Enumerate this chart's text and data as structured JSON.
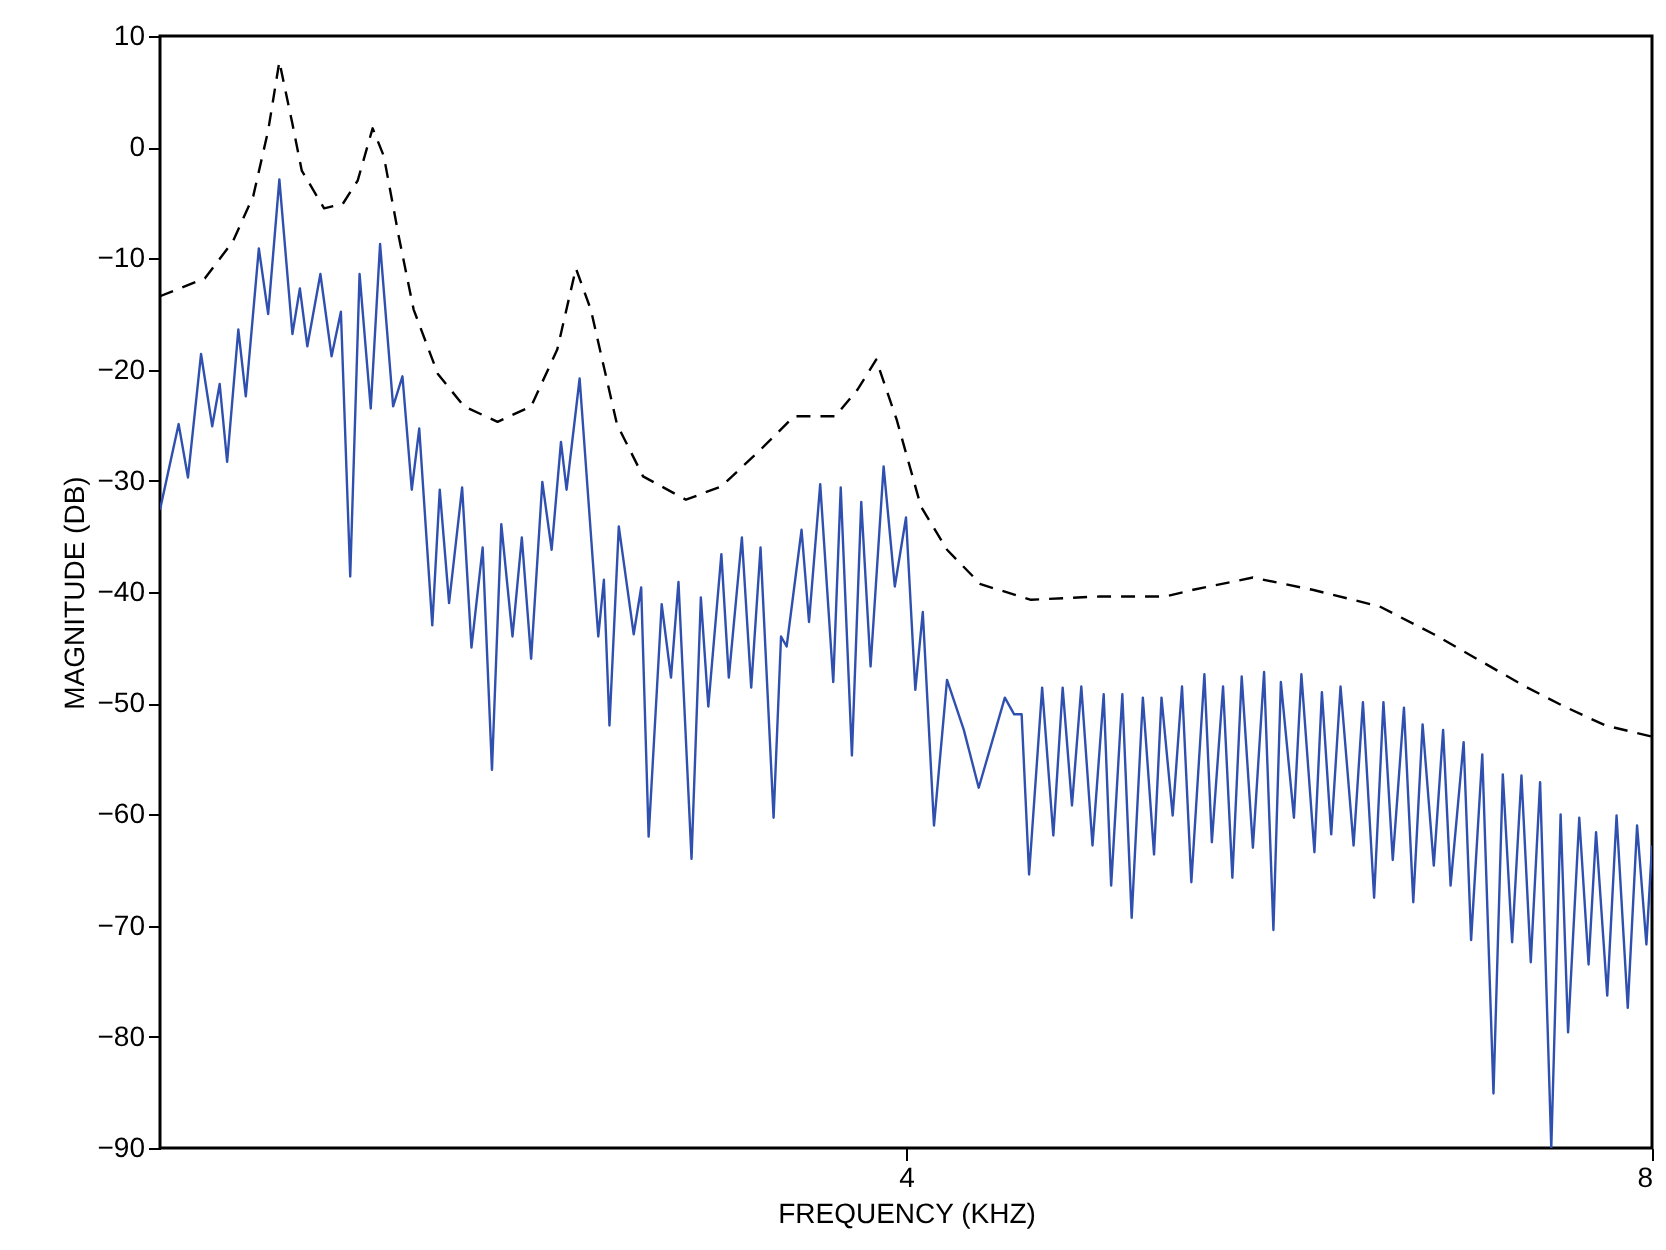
{
  "chart_data": {
    "type": "line",
    "xlabel": "FREQUENCY (KHZ)",
    "ylabel": "MAGNITUDE (DB)",
    "xlim": [
      0,
      8
    ],
    "xticks": [
      4,
      8
    ],
    "ylim": [
      -90,
      10
    ],
    "yticks": [
      -90,
      -80,
      -70,
      -60,
      -50,
      -40,
      -30,
      -20,
      -10,
      0,
      10
    ],
    "grid": false,
    "marker": "none",
    "series": [
      {
        "color": "#000000",
        "line_style": "dashed",
        "x": [
          0,
          0.24,
          0.39,
          0.5,
          0.58,
          0.64,
          0.71,
          0.76,
          0.88,
          0.98,
          1.06,
          1.14,
          1.2,
          1.28,
          1.36,
          1.49,
          1.63,
          1.81,
          1.99,
          2.13,
          2.23,
          2.31,
          2.45,
          2.59,
          2.82,
          3.01,
          3.22,
          3.4,
          3.62,
          3.74,
          3.84,
          3.95,
          4.08,
          4.22,
          4.4,
          4.67,
          5.04,
          5.39,
          5.54,
          5.86,
          6.18,
          6.54,
          6.83,
          7.07,
          7.32,
          7.53,
          7.75,
          8.0
        ],
        "values": [
          -13.4,
          -11.8,
          -8.5,
          -4.4,
          1.5,
          7.7,
          2.1,
          -2.1,
          -5.5,
          -5.1,
          -3,
          1.7,
          -0.8,
          -8,
          -14.6,
          -20.4,
          -23.3,
          -24.7,
          -23.3,
          -18.2,
          -10.9,
          -14.6,
          -24.9,
          -29.6,
          -31.7,
          -30.5,
          -27.2,
          -24.2,
          -24.2,
          -21.8,
          -19.1,
          -24.5,
          -32.3,
          -36.2,
          -39.3,
          -40.7,
          -40.4,
          -40.4,
          -39.8,
          -38.7,
          -39.8,
          -41.3,
          -43.8,
          -46.1,
          -48.5,
          -50.3,
          -52,
          -53
        ]
      },
      {
        "color": "#3050b0",
        "line_style": "solid",
        "x": [
          0,
          0.1,
          0.15,
          0.22,
          0.28,
          0.32,
          0.36,
          0.42,
          0.46,
          0.53,
          0.58,
          0.64,
          0.71,
          0.75,
          0.79,
          0.86,
          0.92,
          0.97,
          1.02,
          1.07,
          1.13,
          1.18,
          1.25,
          1.3,
          1.35,
          1.39,
          1.46,
          1.5,
          1.55,
          1.62,
          1.67,
          1.73,
          1.78,
          1.83,
          1.89,
          1.94,
          1.99,
          2.05,
          2.1,
          2.15,
          2.18,
          2.25,
          2.35,
          2.38,
          2.41,
          2.46,
          2.54,
          2.58,
          2.62,
          2.69,
          2.74,
          2.78,
          2.85,
          2.9,
          2.94,
          3.01,
          3.05,
          3.12,
          3.17,
          3.22,
          3.29,
          3.33,
          3.36,
          3.44,
          3.48,
          3.54,
          3.61,
          3.65,
          3.71,
          3.76,
          3.81,
          3.88,
          3.94,
          4.0,
          4.05,
          4.09,
          4.15,
          4.22,
          4.31,
          4.39,
          4.53,
          4.58,
          4.62,
          4.66,
          4.73,
          4.79,
          4.84,
          4.89,
          4.94,
          5.0,
          5.06,
          5.1,
          5.16,
          5.21,
          5.27,
          5.33,
          5.37,
          5.43,
          5.48,
          5.53,
          5.6,
          5.64,
          5.7,
          5.75,
          5.8,
          5.86,
          5.92,
          5.97,
          6.01,
          6.08,
          6.12,
          6.19,
          6.23,
          6.28,
          6.33,
          6.4,
          6.45,
          6.51,
          6.56,
          6.61,
          6.67,
          6.72,
          6.77,
          6.83,
          6.88,
          6.92,
          6.99,
          7.03,
          7.09,
          7.15,
          7.2,
          7.25,
          7.3,
          7.35,
          7.4,
          7.46,
          7.51,
          7.55,
          7.61,
          7.66,
          7.7,
          7.76,
          7.81,
          7.87,
          7.92,
          7.97,
          8.0
        ],
        "values": [
          -32.6,
          -24.9,
          -29.7,
          -18.6,
          -25.1,
          -21.3,
          -28.3,
          -16.4,
          -22.4,
          -9.1,
          -15,
          -2.9,
          -16.8,
          -12.7,
          -17.9,
          -11.4,
          -18.8,
          -14.8,
          -38.6,
          -11.4,
          -23.5,
          -8.7,
          -23.3,
          -20.6,
          -30.8,
          -25.3,
          -43,
          -30.8,
          -41,
          -30.6,
          -45,
          -36,
          -56,
          -33.9,
          -44,
          -35.1,
          -46,
          -30.1,
          -36.2,
          -26.5,
          -30.8,
          -20.8,
          -44,
          -38.9,
          -52,
          -34.1,
          -43.8,
          -39.6,
          -62,
          -41.1,
          -47.7,
          -39.1,
          -64,
          -40.5,
          -50.3,
          -36.6,
          -47.7,
          -35.1,
          -48.6,
          -36,
          -60.3,
          -44,
          -44.9,
          -34.4,
          -42.7,
          -30.3,
          -48.1,
          -30.6,
          -54.7,
          -31.9,
          -46.7,
          -28.7,
          -39.5,
          -33.3,
          -48.8,
          -41.8,
          -61,
          -47.9,
          -52.4,
          -57.6,
          -49.5,
          -51,
          -51,
          -65.4,
          -48.6,
          -61.9,
          -48.6,
          -59.2,
          -48.5,
          -62.8,
          -49.2,
          -66.4,
          -49.2,
          -69.3,
          -49.5,
          -63.6,
          -49.5,
          -60.1,
          -48.5,
          -66.1,
          -47.4,
          -62.5,
          -48.5,
          -65.7,
          -47.6,
          -63,
          -47.2,
          -70.4,
          -48.1,
          -60.3,
          -47.4,
          -63.4,
          -49,
          -61.8,
          -48.5,
          -62.8,
          -49.9,
          -67.5,
          -49.9,
          -64.1,
          -50.4,
          -67.9,
          -51.9,
          -64.6,
          -52.4,
          -66.4,
          -53.5,
          -71.3,
          -54.6,
          -85.1,
          -56.4,
          -71.5,
          -56.5,
          -73.3,
          -57.1,
          -90,
          -60,
          -79.6,
          -60.3,
          -73.5,
          -61.6,
          -76.3,
          -60.1,
          -77.4,
          -61,
          -71.7,
          -62.8
        ]
      }
    ]
  }
}
